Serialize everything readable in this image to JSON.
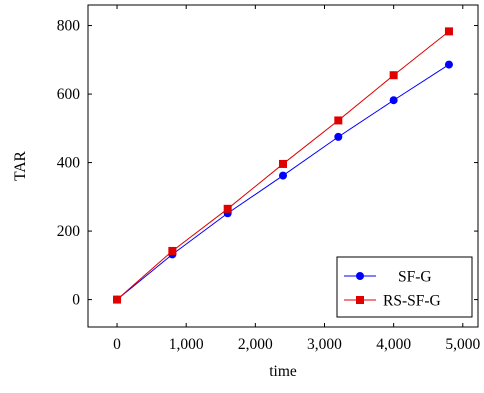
{
  "chart_data": {
    "type": "line",
    "xlabel": "time",
    "ylabel": "TAR",
    "xlim": [
      -420,
      5220
    ],
    "ylim": [
      -80,
      860
    ],
    "x_ticks": [
      0,
      1000,
      2000,
      3000,
      4000,
      5000
    ],
    "x_tick_labels": [
      "0",
      "1,000",
      "2,000",
      "3,000",
      "4,000",
      "5,000"
    ],
    "y_ticks": [
      0,
      200,
      400,
      600,
      800
    ],
    "y_tick_labels": [
      "0",
      "200",
      "400",
      "600",
      "800"
    ],
    "x": [
      0,
      800,
      1600,
      2400,
      3200,
      4000,
      4800
    ],
    "series": [
      {
        "name": "SF-G",
        "values": [
          0,
          132,
          252,
          362,
          475,
          582,
          686
        ],
        "color": "#0000ff",
        "marker": "circle"
      },
      {
        "name": "RS-SF-G",
        "values": [
          0,
          142,
          265,
          396,
          523,
          655,
          783
        ],
        "color": "#e00000",
        "marker": "square"
      }
    ],
    "legend_position": "bottom-right",
    "grid": false
  }
}
